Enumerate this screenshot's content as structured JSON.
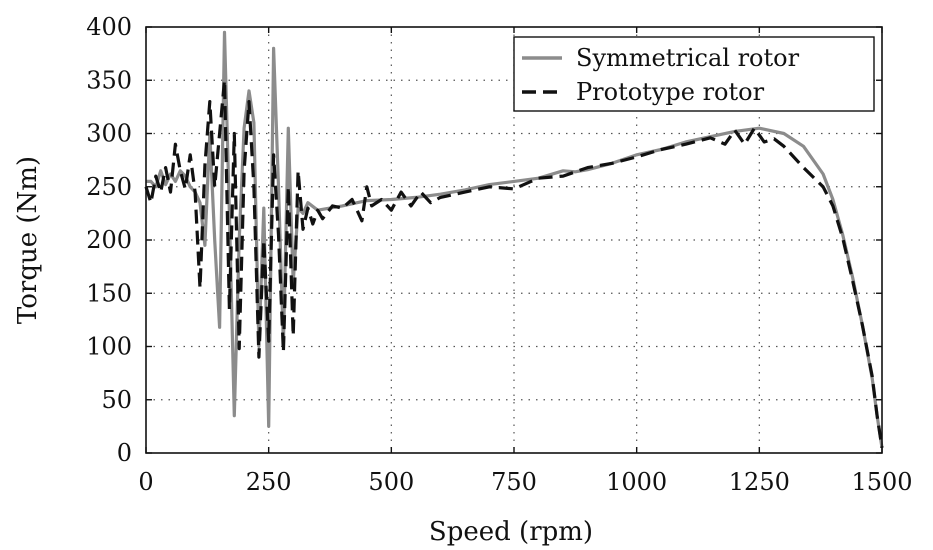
{
  "chart_data": {
    "type": "line",
    "title": "",
    "xlabel": "Speed (rpm)",
    "ylabel": "Torque (Nm)",
    "xlim": [
      0,
      1500
    ],
    "ylim": [
      0,
      400
    ],
    "xticks": [
      "0",
      "250",
      "500",
      "750",
      "1000",
      "1250",
      "1500"
    ],
    "yticks": [
      "0",
      "50",
      "100",
      "150",
      "200",
      "250",
      "300",
      "350",
      "400"
    ],
    "grid": true,
    "legend_position": "top-right",
    "series": [
      {
        "name": "Symmetrical rotor",
        "color": "#8c8c8c",
        "style": "solid",
        "x": [
          0,
          10,
          20,
          30,
          40,
          50,
          60,
          70,
          80,
          90,
          100,
          110,
          120,
          130,
          140,
          150,
          160,
          170,
          180,
          190,
          200,
          210,
          220,
          230,
          240,
          250,
          260,
          270,
          280,
          290,
          300,
          310,
          320,
          330,
          350,
          400,
          450,
          500,
          550,
          600,
          650,
          700,
          750,
          800,
          850,
          875,
          900,
          950,
          1000,
          1050,
          1100,
          1150,
          1200,
          1250,
          1300,
          1340,
          1380,
          1400,
          1420,
          1440,
          1460,
          1480,
          1490,
          1500
        ],
        "y": [
          255,
          255,
          250,
          265,
          252,
          262,
          255,
          265,
          260,
          250,
          245,
          235,
          195,
          300,
          200,
          118,
          395,
          225,
          35,
          200,
          305,
          340,
          310,
          100,
          230,
          25,
          380,
          250,
          102,
          305,
          160,
          230,
          225,
          235,
          228,
          232,
          237,
          238,
          240,
          243,
          247,
          252,
          255,
          258,
          265,
          264,
          266,
          272,
          280,
          285,
          292,
          297,
          302,
          305,
          300,
          288,
          262,
          238,
          205,
          165,
          120,
          70,
          35,
          5
        ]
      },
      {
        "name": "Prototype rotor",
        "color": "#111111",
        "style": "dashed",
        "x": [
          0,
          10,
          20,
          30,
          40,
          50,
          60,
          70,
          80,
          90,
          100,
          110,
          120,
          130,
          140,
          150,
          160,
          170,
          180,
          190,
          200,
          210,
          220,
          230,
          240,
          250,
          260,
          270,
          280,
          290,
          300,
          310,
          320,
          330,
          340,
          350,
          360,
          380,
          400,
          420,
          440,
          450,
          460,
          480,
          500,
          520,
          540,
          560,
          580,
          600,
          650,
          700,
          750,
          800,
          850,
          900,
          950,
          1000,
          1050,
          1100,
          1150,
          1180,
          1200,
          1220,
          1240,
          1260,
          1280,
          1300,
          1340,
          1380,
          1400,
          1420,
          1440,
          1460,
          1480,
          1490,
          1500
        ],
        "y": [
          250,
          235,
          260,
          245,
          268,
          245,
          290,
          265,
          248,
          280,
          245,
          155,
          270,
          330,
          250,
          300,
          350,
          135,
          300,
          98,
          265,
          330,
          250,
          90,
          200,
          105,
          280,
          205,
          95,
          250,
          110,
          265,
          210,
          230,
          215,
          228,
          220,
          232,
          230,
          238,
          218,
          250,
          232,
          238,
          228,
          245,
          232,
          245,
          235,
          240,
          245,
          250,
          248,
          258,
          260,
          268,
          272,
          278,
          285,
          290,
          296,
          290,
          303,
          290,
          305,
          292,
          295,
          288,
          268,
          250,
          232,
          202,
          162,
          120,
          72,
          35,
          5
        ]
      }
    ]
  }
}
